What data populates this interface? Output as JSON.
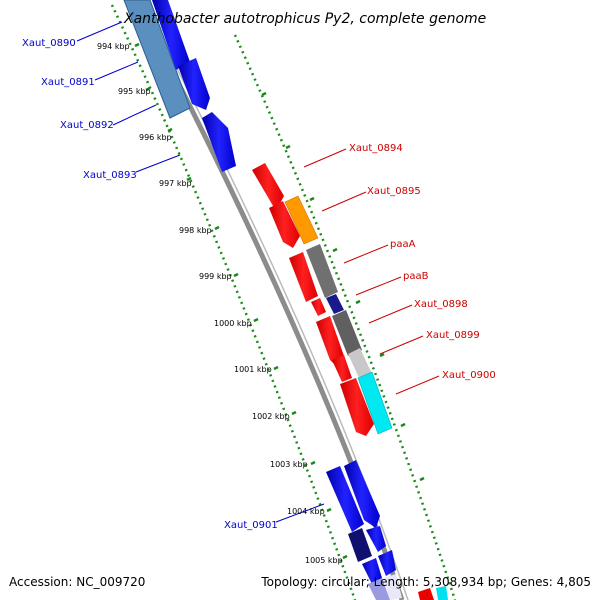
{
  "title": "Xanthobacter autotrophicus Py2, complete genome",
  "footer": {
    "accession": "Accession: NC_009720",
    "stats": "Topology: circular; Length: 5,308,934 bp; Genes: 4,805"
  },
  "colors": {
    "backbone": "#8c8c8c",
    "tick": "#1a8a1a",
    "forward_label": "#0000cc",
    "reverse_label": "#cc0000"
  },
  "ticks": [
    "994 kbp",
    "995 kbp",
    "996 kbp",
    "997 kbp",
    "998 kbp",
    "999 kbp",
    "1000 kbp",
    "1001 kbp",
    "1002 kbp",
    "1003 kbp",
    "1004 kbp",
    "1005 kbp"
  ],
  "labels_left": [
    "Xaut_0890",
    "Xaut_0891",
    "Xaut_0892",
    "Xaut_0893",
    "Xaut_0901"
  ],
  "labels_right": [
    "Xaut_0894",
    "Xaut_0895",
    "paaA",
    "paaB",
    "Xaut_0898",
    "Xaut_0899",
    "Xaut_0900"
  ]
}
